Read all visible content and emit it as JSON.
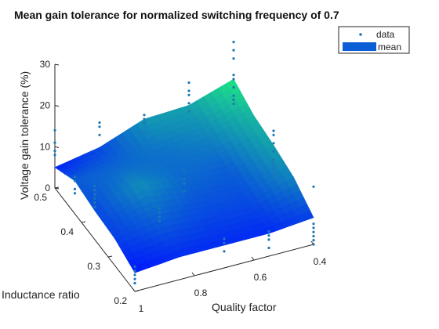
{
  "chart_data": {
    "type": "surface3d",
    "title": "Mean gain tolerance for normalized switching frequency of 0.7",
    "xlabel": "Quality factor",
    "ylabel": "Inductance ratio",
    "zlabel": "Voltage gain tolerance (%)",
    "xlim": [
      0.4,
      1.0
    ],
    "ylim": [
      0.2,
      0.5
    ],
    "zlim": [
      0,
      30
    ],
    "x_ticks": [
      "1",
      "0.8",
      "0.6",
      "0.4"
    ],
    "y_ticks": [
      "0.2",
      "0.3",
      "0.4",
      "0.5"
    ],
    "z_ticks": [
      "0",
      "10",
      "20",
      "30"
    ],
    "legend": {
      "placement": "top-right",
      "entries": [
        "data",
        "mean"
      ]
    },
    "colors": {
      "data": "#1f77b4",
      "surface_low": "#0018ff",
      "surface_high": "#1ee882"
    },
    "grid": false,
    "mean_surface": {
      "q": [
        0.4,
        0.55,
        0.7,
        0.85,
        1.0
      ],
      "m": [
        0.2,
        0.275,
        0.35,
        0.425,
        0.5
      ],
      "gain": [
        [
          6.5,
          10.0,
          11.5,
          12.5,
          15.0
        ],
        [
          5.5,
          7.0,
          8.0,
          10.0,
          11.5
        ],
        [
          5.5,
          7.0,
          8.5,
          9.0,
          11.0
        ],
        [
          5.5,
          8.0,
          10.5,
          8.5,
          7.0
        ],
        [
          4.5,
          6.5,
          7.0,
          8.0,
          5.0
        ]
      ]
    },
    "data_points": [
      {
        "q": 0.4,
        "m": 0.5,
        "v": [
          9,
          10,
          10,
          11,
          13,
          15,
          16,
          20,
          22,
          24
        ]
      },
      {
        "q": 0.4,
        "m": 0.35,
        "v": [
          4,
          5,
          6,
          7,
          8,
          10,
          12,
          14,
          15
        ]
      },
      {
        "q": 0.4,
        "m": 0.2,
        "v": [
          0,
          1,
          1,
          2,
          3,
          4,
          5,
          14
        ]
      },
      {
        "q": 0.55,
        "m": 0.5,
        "v": [
          10,
          12,
          14,
          15,
          17
        ]
      },
      {
        "q": 0.55,
        "m": 0.2,
        "v": [
          2,
          4,
          5,
          6
        ]
      },
      {
        "q": 0.7,
        "m": 0.5,
        "v": [
          8,
          10,
          11,
          12
        ]
      },
      {
        "q": 0.7,
        "m": 0.35,
        "v": [
          6,
          8,
          9,
          11
        ]
      },
      {
        "q": 0.7,
        "m": 0.2,
        "v": [
          4,
          6,
          7
        ]
      },
      {
        "q": 0.85,
        "m": 0.5,
        "v": [
          10,
          12,
          13
        ]
      },
      {
        "q": 0.85,
        "m": 0.275,
        "v": [
          8,
          9,
          10,
          11
        ]
      },
      {
        "q": 1.0,
        "m": 0.5,
        "v": [
          8,
          9,
          11,
          14
        ]
      },
      {
        "q": 1.0,
        "m": 0.35,
        "v": [
          8,
          9,
          10,
          11,
          12,
          13
        ]
      },
      {
        "q": 1.0,
        "m": 0.2,
        "v": [
          2,
          3,
          4,
          5,
          6
        ]
      },
      {
        "q": 1.0,
        "m": 0.425,
        "v": [
          5,
          6,
          8,
          9
        ]
      }
    ]
  }
}
